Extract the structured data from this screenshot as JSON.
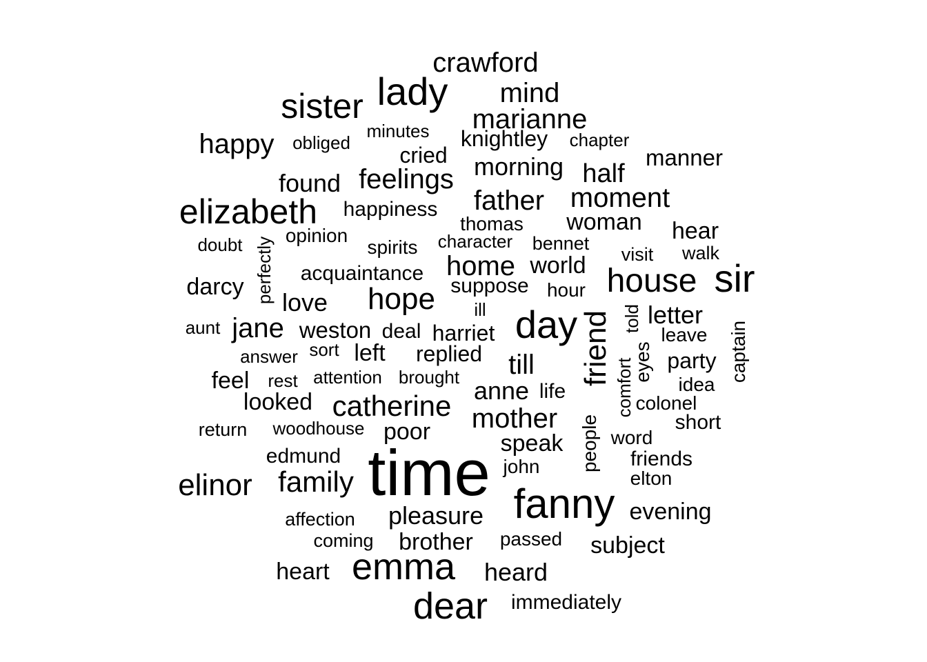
{
  "chart_data": {
    "type": "wordcloud",
    "color": "#000000",
    "words": [
      {
        "text": "time",
        "weight": 100
      },
      {
        "text": "fanny",
        "weight": 70
      },
      {
        "text": "dear",
        "weight": 66
      },
      {
        "text": "emma",
        "weight": 66
      },
      {
        "text": "lady",
        "weight": 64
      },
      {
        "text": "day",
        "weight": 62
      },
      {
        "text": "sir",
        "weight": 60
      },
      {
        "text": "house",
        "weight": 54
      },
      {
        "text": "elizabeth",
        "weight": 52
      },
      {
        "text": "sister",
        "weight": 52
      },
      {
        "text": "friend",
        "weight": 52
      },
      {
        "text": "hope",
        "weight": 48
      },
      {
        "text": "mother",
        "weight": 46
      },
      {
        "text": "elinor",
        "weight": 46
      },
      {
        "text": "family",
        "weight": 46
      },
      {
        "text": "catherine",
        "weight": 44
      },
      {
        "text": "father",
        "weight": 44
      },
      {
        "text": "mind",
        "weight": 44
      },
      {
        "text": "crawford",
        "weight": 42
      },
      {
        "text": "marianne",
        "weight": 42
      },
      {
        "text": "feelings",
        "weight": 42
      },
      {
        "text": "happy",
        "weight": 42
      },
      {
        "text": "home",
        "weight": 42
      },
      {
        "text": "moment",
        "weight": 42
      },
      {
        "text": "jane",
        "weight": 40
      },
      {
        "text": "till",
        "weight": 40
      },
      {
        "text": "love",
        "weight": 38
      },
      {
        "text": "anne",
        "weight": 38
      },
      {
        "text": "pleasure",
        "weight": 38
      },
      {
        "text": "brother",
        "weight": 36
      },
      {
        "text": "heart",
        "weight": 36
      },
      {
        "text": "heard",
        "weight": 36
      },
      {
        "text": "subject",
        "weight": 36
      },
      {
        "text": "half",
        "weight": 38
      },
      {
        "text": "morning",
        "weight": 36
      },
      {
        "text": "found",
        "weight": 36
      },
      {
        "text": "letter",
        "weight": 36
      },
      {
        "text": "woman",
        "weight": 34
      },
      {
        "text": "hear",
        "weight": 34
      },
      {
        "text": "left",
        "weight": 34
      },
      {
        "text": "poor",
        "weight": 34
      },
      {
        "text": "speak",
        "weight": 34
      },
      {
        "text": "world",
        "weight": 34
      },
      {
        "text": "manner",
        "weight": 32
      },
      {
        "text": "weston",
        "weight": 32
      },
      {
        "text": "harriet",
        "weight": 32
      },
      {
        "text": "replied",
        "weight": 32
      },
      {
        "text": "looked",
        "weight": 32
      },
      {
        "text": "feel",
        "weight": 32
      },
      {
        "text": "darcy",
        "weight": 32
      },
      {
        "text": "party",
        "weight": 30
      },
      {
        "text": "evening",
        "weight": 32
      },
      {
        "text": "cried",
        "weight": 30
      },
      {
        "text": "knightley",
        "weight": 30
      },
      {
        "text": "suppose",
        "weight": 28
      },
      {
        "text": "captain",
        "weight": 28
      },
      {
        "text": "acquaintance",
        "weight": 28
      },
      {
        "text": "happiness",
        "weight": 28
      },
      {
        "text": "edmund",
        "weight": 28
      },
      {
        "text": "thomas",
        "weight": 26
      },
      {
        "text": "spirits",
        "weight": 26
      },
      {
        "text": "opinion",
        "weight": 26
      },
      {
        "text": "perfectly",
        "weight": 26
      },
      {
        "text": "people",
        "weight": 26
      },
      {
        "text": "comfort",
        "weight": 26
      },
      {
        "text": "eyes",
        "weight": 26
      },
      {
        "text": "told",
        "weight": 26
      },
      {
        "text": "hour",
        "weight": 26
      },
      {
        "text": "bennet",
        "weight": 26
      },
      {
        "text": "visit",
        "weight": 26
      },
      {
        "text": "walk",
        "weight": 26
      },
      {
        "text": "character",
        "weight": 25
      },
      {
        "text": "minutes",
        "weight": 25
      },
      {
        "text": "obliged",
        "weight": 25
      },
      {
        "text": "chapter",
        "weight": 25
      },
      {
        "text": "doubt",
        "weight": 25
      },
      {
        "text": "ill",
        "weight": 26
      },
      {
        "text": "deal",
        "weight": 28
      },
      {
        "text": "aunt",
        "weight": 25
      },
      {
        "text": "answer",
        "weight": 25
      },
      {
        "text": "sort",
        "weight": 25
      },
      {
        "text": "attention",
        "weight": 25
      },
      {
        "text": "brought",
        "weight": 25
      },
      {
        "text": "rest",
        "weight": 25
      },
      {
        "text": "life",
        "weight": 28
      },
      {
        "text": "idea",
        "weight": 28
      },
      {
        "text": "leave",
        "weight": 28
      },
      {
        "text": "colonel",
        "weight": 28
      },
      {
        "text": "short",
        "weight": 28
      },
      {
        "text": "word",
        "weight": 26
      },
      {
        "text": "friends",
        "weight": 28
      },
      {
        "text": "elton",
        "weight": 26
      },
      {
        "text": "john",
        "weight": 28
      },
      {
        "text": "return",
        "weight": 25
      },
      {
        "text": "woodhouse",
        "weight": 25
      },
      {
        "text": "affection",
        "weight": 25
      },
      {
        "text": "coming",
        "weight": 25
      },
      {
        "text": "passed",
        "weight": 25
      },
      {
        "text": "immediately",
        "weight": 28
      }
    ]
  }
}
